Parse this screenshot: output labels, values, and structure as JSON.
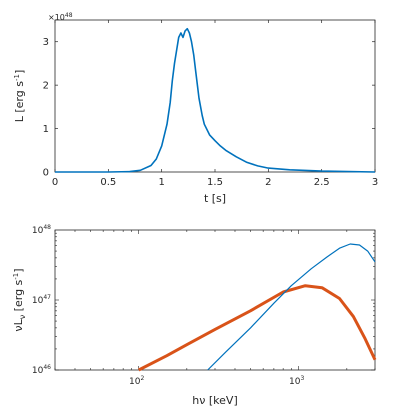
{
  "chart_data": [
    {
      "type": "line",
      "xlabel": "t [s]",
      "ylabel": "L [erg s",
      "ylabel_sup": "-1",
      "ylabel_close": "]",
      "y_multiplier": {
        "base": "×10",
        "exp": "48"
      },
      "xlim": [
        0,
        3
      ],
      "ylim": [
        0,
        3.5
      ],
      "x_ticks": [
        0,
        0.5,
        1,
        1.5,
        2,
        2.5,
        3
      ],
      "x_tick_labels": [
        "0",
        "0.5",
        "1",
        "1.5",
        "2",
        "2.5",
        "3"
      ],
      "y_ticks": [
        0,
        1,
        2,
        3
      ],
      "y_tick_labels": [
        "0",
        "1",
        "2",
        "3"
      ],
      "series": [
        {
          "color": "#0072BD",
          "x": [
            0,
            0.5,
            0.7,
            0.8,
            0.9,
            0.95,
            1.0,
            1.05,
            1.08,
            1.1,
            1.12,
            1.14,
            1.16,
            1.18,
            1.2,
            1.22,
            1.24,
            1.26,
            1.28,
            1.3,
            1.32,
            1.35,
            1.38,
            1.4,
            1.45,
            1.5,
            1.55,
            1.6,
            1.7,
            1.8,
            1.9,
            2.0,
            2.2,
            2.5,
            3.0
          ],
          "y": [
            0,
            0,
            0.01,
            0.04,
            0.15,
            0.3,
            0.6,
            1.1,
            1.6,
            2.1,
            2.5,
            2.8,
            3.1,
            3.2,
            3.1,
            3.25,
            3.3,
            3.2,
            3.0,
            2.7,
            2.3,
            1.7,
            1.3,
            1.1,
            0.85,
            0.72,
            0.6,
            0.5,
            0.35,
            0.22,
            0.14,
            0.09,
            0.05,
            0.02,
            0.0
          ]
        }
      ]
    },
    {
      "type": "line",
      "xlabel": "hν [keV]",
      "ylabel": "νL",
      "ylabel_sub": "ν",
      "ylabel_rest": " [erg s",
      "ylabel_sup": "-1",
      "ylabel_close": "]",
      "x_scale": "log",
      "y_scale": "log",
      "xlim": [
        30,
        3000
      ],
      "ylim": [
        1e+46,
        1e+48
      ],
      "x_tick_labels": [
        {
          "base": "10",
          "exp": "2",
          "value": 100
        },
        {
          "base": "10",
          "exp": "3",
          "value": 1000
        }
      ],
      "y_tick_labels": [
        {
          "base": "10",
          "exp": "46",
          "value": 1e+46
        },
        {
          "base": "10",
          "exp": "47",
          "value": 1e+47
        },
        {
          "base": "10",
          "exp": "48",
          "value": 1e+48
        }
      ],
      "series": [
        {
          "color": "#D95319",
          "linewidth": "thick",
          "x": [
            100,
            150,
            200,
            300,
            500,
            800,
            1100,
            1400,
            1800,
            2200,
            2600,
            3000
          ],
          "y": [
            1e+46,
            1.6e+46,
            2.3e+46,
            3.8e+46,
            7e+46,
            1.3e+47,
            1.6e+47,
            1.5e+47,
            1.05e+47,
            5.8e+46,
            2.8e+46,
            1.4e+46
          ]
        },
        {
          "color": "#0072BD",
          "linewidth": "thin",
          "x": [
            270,
            350,
            500,
            700,
            900,
            1200,
            1500,
            1800,
            2100,
            2400,
            2700,
            3000
          ],
          "y": [
            1e+46,
            1.8e+46,
            4e+46,
            9e+46,
            1.6e+47,
            2.8e+47,
            4.1e+47,
            5.5e+47,
            6.3e+47,
            6.1e+47,
            5e+47,
            3.5e+47
          ]
        }
      ]
    }
  ]
}
